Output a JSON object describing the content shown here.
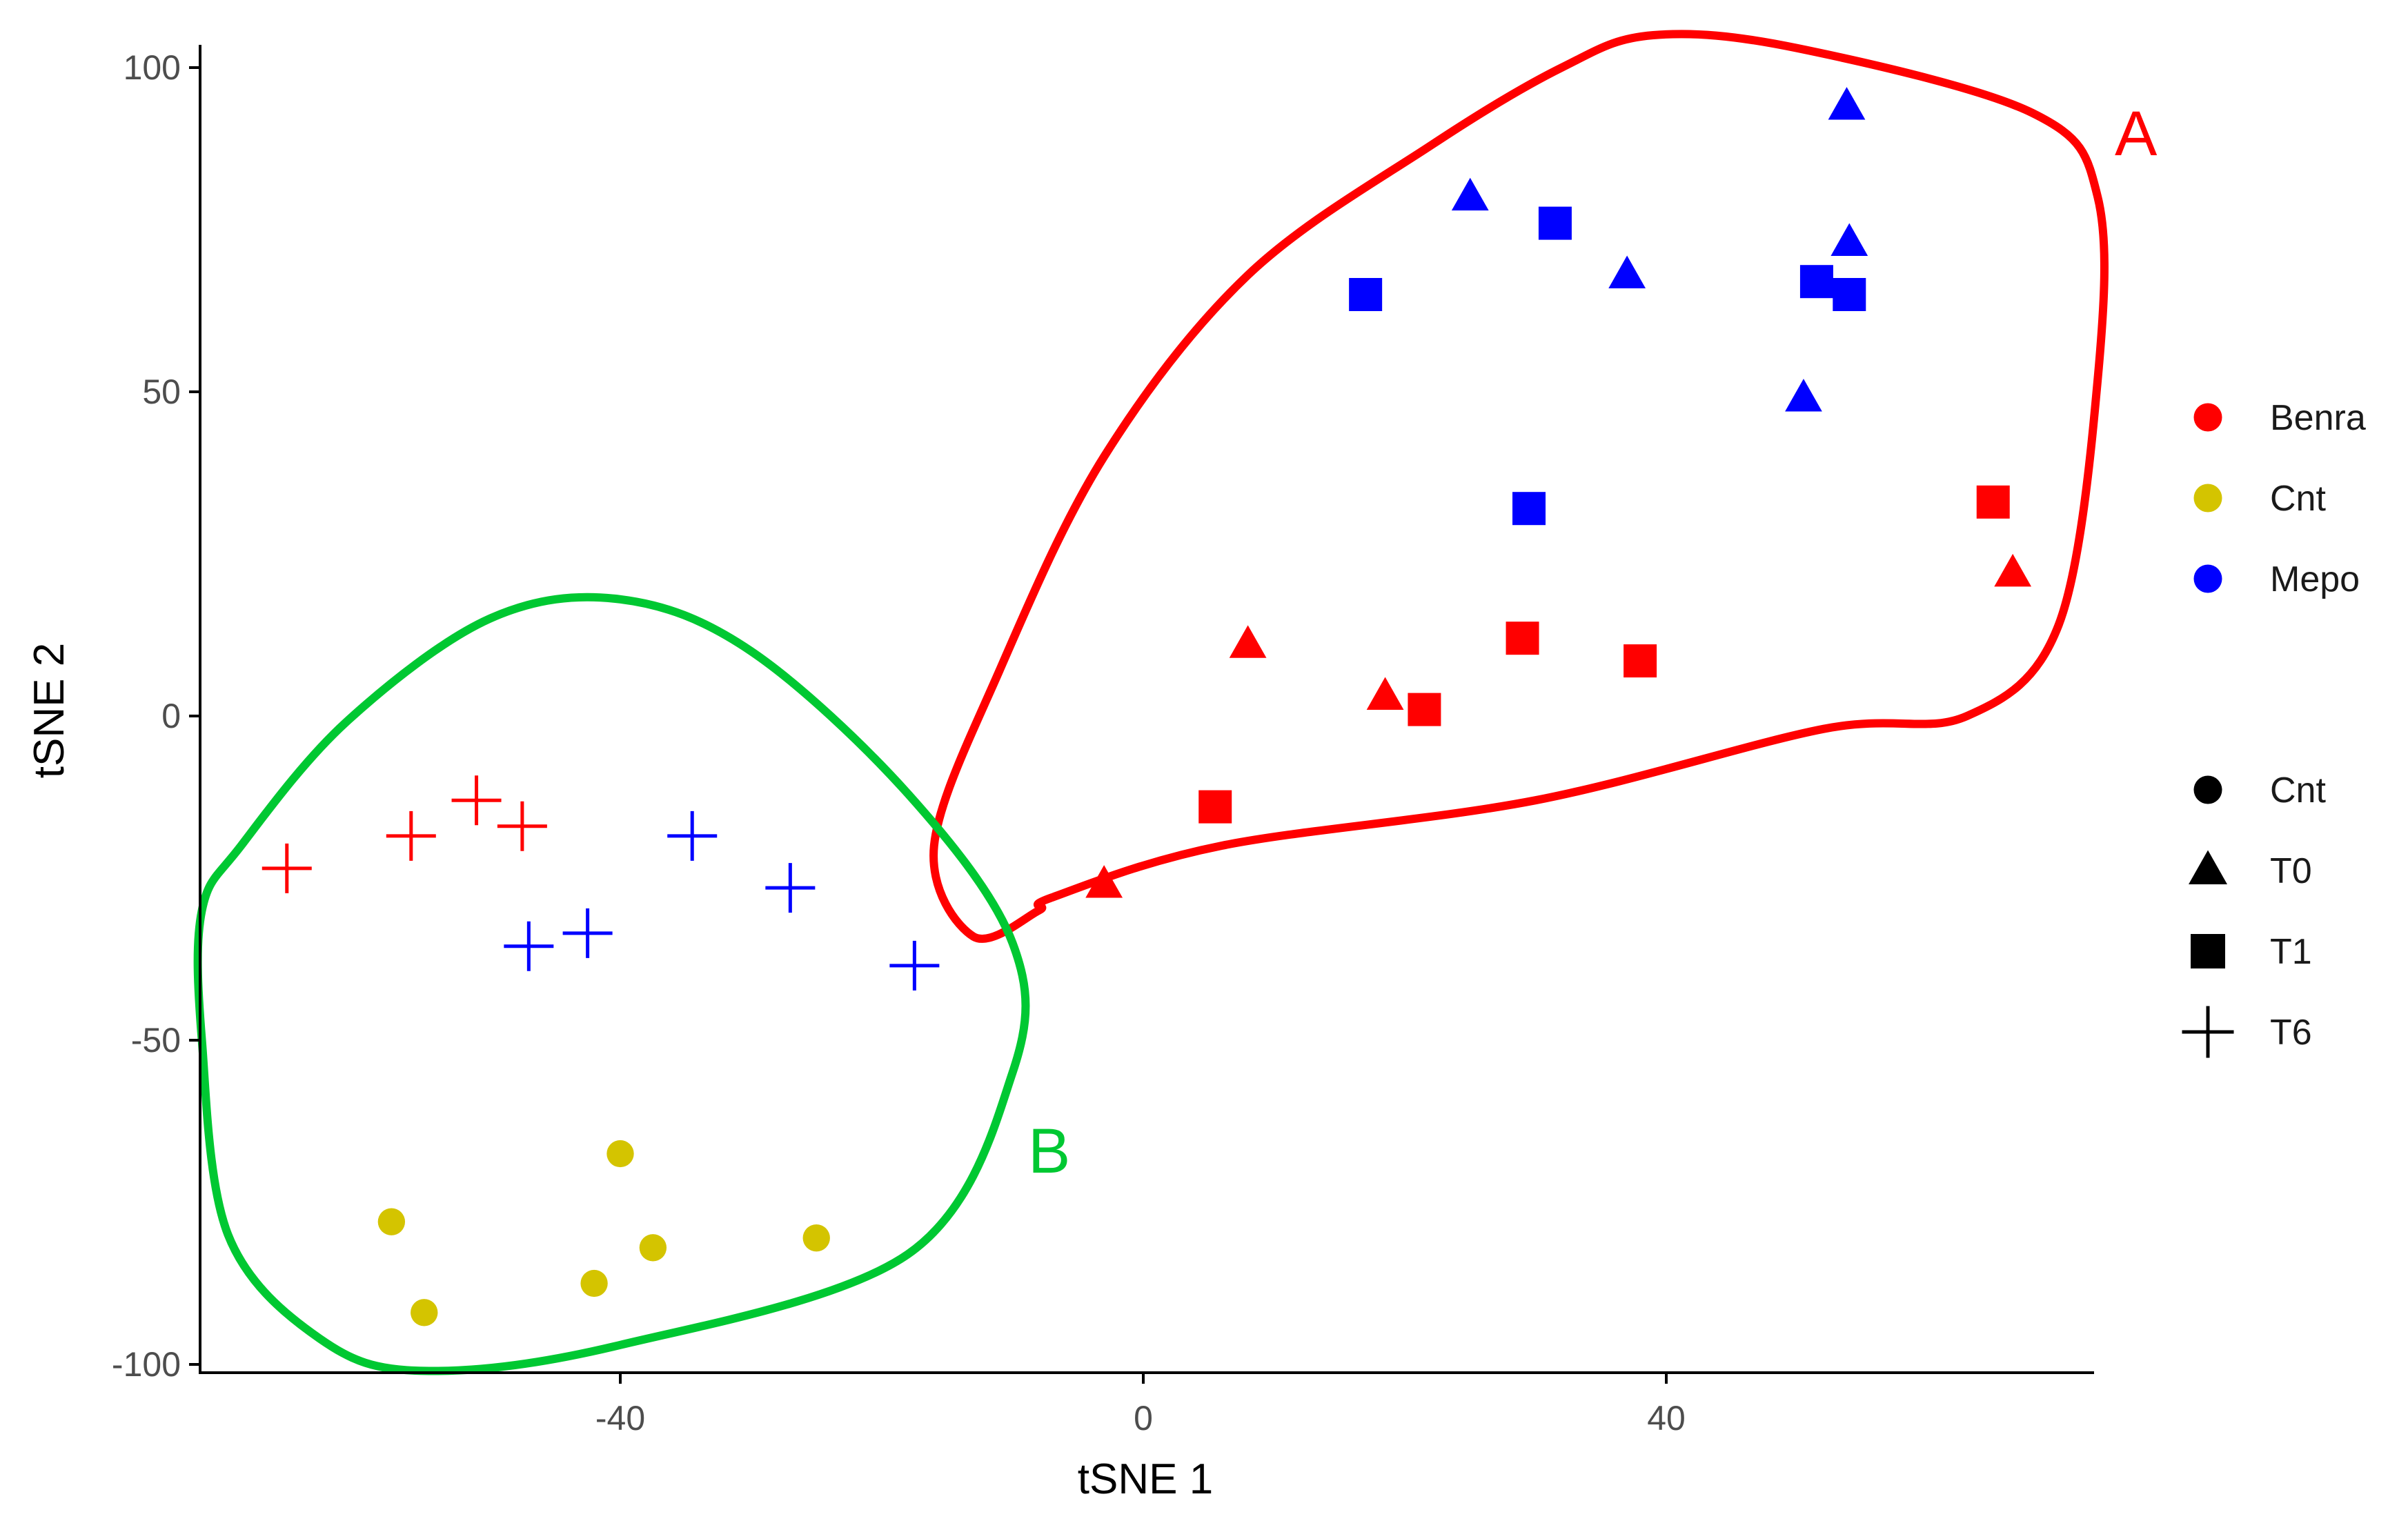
{
  "chart_data": {
    "type": "scatter",
    "xlabel": "tSNE 1",
    "ylabel": "tSNE 2",
    "xlim": [
      -72,
      73
    ],
    "ylim": [
      -101,
      104
    ],
    "x_ticks": [
      -40,
      0,
      40
    ],
    "y_ticks": [
      -100,
      -50,
      0,
      50,
      100
    ],
    "grid": false,
    "legend_placement": "right",
    "color_legend": [
      {
        "label": "Benra",
        "color": "#ff0000"
      },
      {
        "label": "Cnt",
        "color": "#d4c400"
      },
      {
        "label": "Mepo",
        "color": "#0000ff"
      }
    ],
    "shape_legend": [
      {
        "label": "Cnt",
        "shape": "circle"
      },
      {
        "label": "T0",
        "shape": "triangle"
      },
      {
        "label": "T1",
        "shape": "square"
      },
      {
        "label": "T6",
        "shape": "cross"
      }
    ],
    "points": [
      {
        "group": "Mepo",
        "time": "T0",
        "x": 53.8,
        "y": 94
      },
      {
        "group": "Mepo",
        "time": "T0",
        "x": 25,
        "y": 80
      },
      {
        "group": "Mepo",
        "time": "T0",
        "x": 37,
        "y": 68
      },
      {
        "group": "Mepo",
        "time": "T0",
        "x": 54,
        "y": 73
      },
      {
        "group": "Mepo",
        "time": "T0",
        "x": 50.5,
        "y": 49
      },
      {
        "group": "Mepo",
        "time": "T1",
        "x": 31.5,
        "y": 76
      },
      {
        "group": "Mepo",
        "time": "T1",
        "x": 17,
        "y": 65
      },
      {
        "group": "Mepo",
        "time": "T1",
        "x": 51.5,
        "y": 67
      },
      {
        "group": "Mepo",
        "time": "T1",
        "x": 54,
        "y": 65
      },
      {
        "group": "Mepo",
        "time": "T1",
        "x": 29.5,
        "y": 32
      },
      {
        "group": "Benra",
        "time": "T1",
        "x": 65,
        "y": 33
      },
      {
        "group": "Benra",
        "time": "T0",
        "x": 66.5,
        "y": 22
      },
      {
        "group": "Benra",
        "time": "T0",
        "x": 8,
        "y": 11
      },
      {
        "group": "Benra",
        "time": "T0",
        "x": 18.5,
        "y": 3
      },
      {
        "group": "Benra",
        "time": "T1",
        "x": 21.5,
        "y": 1
      },
      {
        "group": "Benra",
        "time": "T1",
        "x": 29,
        "y": 12
      },
      {
        "group": "Benra",
        "time": "T1",
        "x": 38,
        "y": 8.5
      },
      {
        "group": "Benra",
        "time": "T1",
        "x": 5.5,
        "y": -14
      },
      {
        "group": "Benra",
        "time": "T0",
        "x": -3,
        "y": -26
      },
      {
        "group": "Benra",
        "time": "T6",
        "x": -65.5,
        "y": -23.5
      },
      {
        "group": "Benra",
        "time": "T6",
        "x": -56,
        "y": -18.5
      },
      {
        "group": "Benra",
        "time": "T6",
        "x": -51,
        "y": -13
      },
      {
        "group": "Benra",
        "time": "T6",
        "x": -47.5,
        "y": -17
      },
      {
        "group": "Mepo",
        "time": "T6",
        "x": -47,
        "y": -35.5
      },
      {
        "group": "Mepo",
        "time": "T6",
        "x": -42.5,
        "y": -33.5
      },
      {
        "group": "Mepo",
        "time": "T6",
        "x": -34.5,
        "y": -18.5
      },
      {
        "group": "Mepo",
        "time": "T6",
        "x": -27,
        "y": -26.5
      },
      {
        "group": "Mepo",
        "time": "T6",
        "x": -17.5,
        "y": -38.5
      },
      {
        "group": "Cnt",
        "time": "Cnt",
        "x": -40,
        "y": -67.5
      },
      {
        "group": "Cnt",
        "time": "Cnt",
        "x": -57.5,
        "y": -78
      },
      {
        "group": "Cnt",
        "time": "Cnt",
        "x": -37.5,
        "y": -82
      },
      {
        "group": "Cnt",
        "time": "Cnt",
        "x": -42,
        "y": -87.5
      },
      {
        "group": "Cnt",
        "time": "Cnt",
        "x": -55,
        "y": -92
      },
      {
        "group": "Cnt",
        "time": "Cnt",
        "x": -25,
        "y": -80.5
      }
    ],
    "annotations": [
      {
        "text": "A",
        "color": "#ff0000",
        "outline": [
          [
            -8,
            -30
          ],
          [
            -7,
            -28
          ],
          [
            6,
            -20
          ],
          [
            30,
            -13
          ],
          [
            52,
            -2
          ],
          [
            63,
            0
          ],
          [
            70,
            14
          ],
          [
            73,
            52
          ],
          [
            73,
            80
          ],
          [
            68,
            93
          ],
          [
            50,
            103
          ],
          [
            39,
            105
          ],
          [
            32,
            100
          ],
          [
            22,
            88
          ],
          [
            8,
            68
          ],
          [
            -3,
            40
          ],
          [
            -11,
            7
          ],
          [
            -16,
            -20
          ],
          [
            -13,
            -34
          ],
          [
            -8,
            -30
          ]
        ]
      },
      {
        "text": "B",
        "color": "#00c832",
        "outline": [
          [
            -10,
            -55
          ],
          [
            -18,
            -83
          ],
          [
            -40,
            -97
          ],
          [
            -55,
            -101
          ],
          [
            -63,
            -96
          ],
          [
            -70,
            -80
          ],
          [
            -72,
            -50
          ],
          [
            -72,
            -30
          ],
          [
            -69,
            -20
          ],
          [
            -61,
            -1
          ],
          [
            -50,
            15
          ],
          [
            -40,
            18
          ],
          [
            -30,
            10
          ],
          [
            -18,
            -12
          ],
          [
            -10,
            -35
          ],
          [
            -10,
            -55
          ]
        ]
      }
    ]
  }
}
